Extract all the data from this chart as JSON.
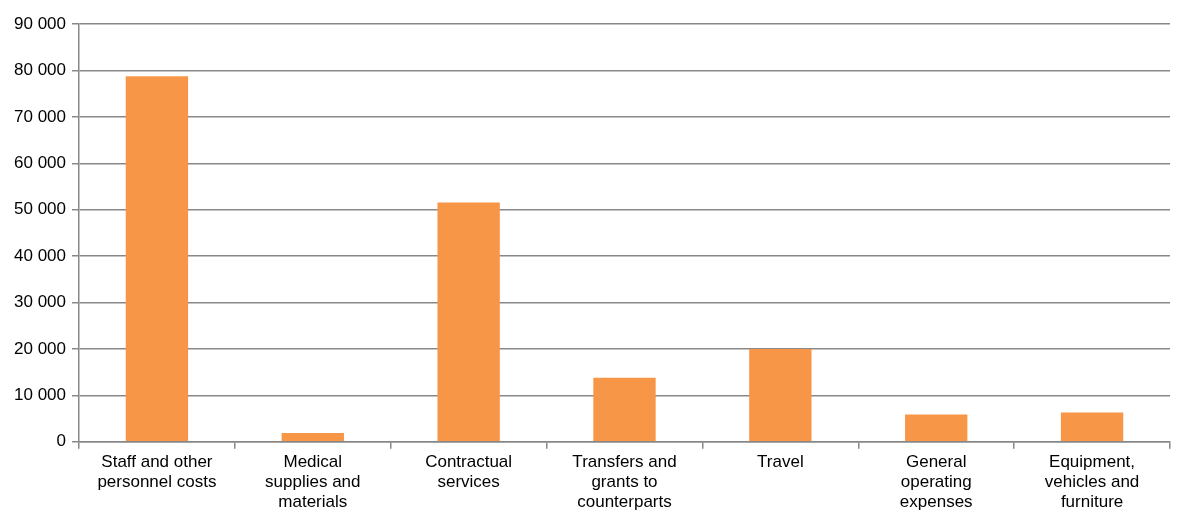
{
  "chart_data": {
    "type": "bar",
    "categories": [
      "Staff and other personnel costs",
      "Medical supplies and materials",
      "Contractual services",
      "Transfers and grants to counterparts",
      "Travel",
      "General operating expenses",
      "Equipment, vehicles and furniture"
    ],
    "values": [
      78800,
      1900,
      51600,
      13800,
      20000,
      5900,
      6300
    ],
    "color": "#f79646",
    "ylim": [
      0,
      90000
    ],
    "yticks": [
      {
        "value": 0,
        "label": "0"
      },
      {
        "value": 10000,
        "label": "10 000"
      },
      {
        "value": 20000,
        "label": "20 000"
      },
      {
        "value": 30000,
        "label": "30 000"
      },
      {
        "value": 40000,
        "label": "40 000"
      },
      {
        "value": 50000,
        "label": "50 000"
      },
      {
        "value": 60000,
        "label": "60 000"
      },
      {
        "value": 70000,
        "label": "70 000"
      },
      {
        "value": 80000,
        "label": "80 000"
      },
      {
        "value": 90000,
        "label": "90 000"
      }
    ],
    "grid": "y",
    "legend": false
  }
}
